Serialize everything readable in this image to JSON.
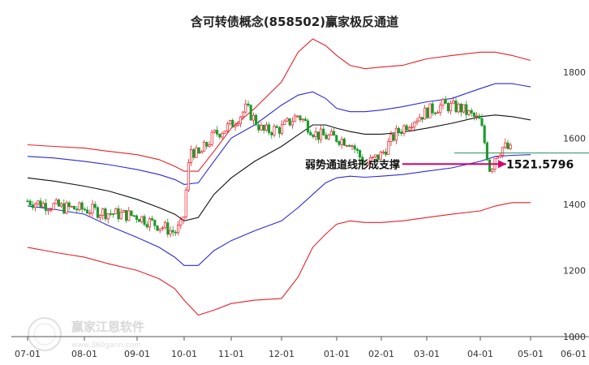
{
  "chart_data": {
    "type": "candlestick",
    "title": "含可转债概念(858502)赢家极反通道",
    "x_ticks": [
      "07-01",
      "08-01",
      "09-01",
      "10-01",
      "11-01",
      "12-01",
      "01-01",
      "02-01",
      "03-01",
      "04-01",
      "05-01",
      "06-01"
    ],
    "y_ticks": [
      1000,
      1200,
      1400,
      1600,
      1800
    ],
    "ylim": [
      1000,
      1900
    ],
    "grid": false,
    "annotation": {
      "label": "弱势通道线形成支撑",
      "value": "1521.5796",
      "value_num": 1521.58,
      "x": "04-14"
    },
    "channel_x": [
      "07-01",
      "07-15",
      "08-01",
      "08-15",
      "09-01",
      "09-15",
      "09-25",
      "10-01",
      "10-10",
      "10-20",
      "11-01",
      "11-15",
      "12-01",
      "12-10",
      "12-18",
      "12-25",
      "01-01",
      "01-10",
      "01-20",
      "02-01",
      "02-15",
      "03-01",
      "03-15",
      "04-01",
      "04-10",
      "04-20",
      "05-01"
    ],
    "series": [
      {
        "color": "#e8202a",
        "values": [
          1580,
          1575,
          1570,
          1560,
          1550,
          1535,
          1515,
          1500,
          1500,
          1560,
          1630,
          1690,
          1770,
          1860,
          1900,
          1880,
          1850,
          1820,
          1810,
          1815,
          1820,
          1840,
          1850,
          1860,
          1860,
          1850,
          1835
        ]
      },
      {
        "color": "#2b2bd8",
        "values": [
          1545,
          1540,
          1530,
          1520,
          1505,
          1490,
          1475,
          1460,
          1465,
          1530,
          1600,
          1640,
          1700,
          1730,
          1740,
          1720,
          1690,
          1680,
          1680,
          1685,
          1695,
          1710,
          1720,
          1750,
          1765,
          1765,
          1755
        ]
      },
      {
        "color": "#111111",
        "values": [
          1480,
          1470,
          1455,
          1440,
          1415,
          1390,
          1370,
          1350,
          1360,
          1430,
          1480,
          1530,
          1575,
          1610,
          1640,
          1640,
          1630,
          1620,
          1612,
          1612,
          1618,
          1630,
          1645,
          1665,
          1670,
          1665,
          1655
        ]
      },
      {
        "color": "#2b2bd8",
        "values": [
          1395,
          1385,
          1370,
          1335,
          1300,
          1270,
          1240,
          1215,
          1215,
          1260,
          1290,
          1320,
          1350,
          1390,
          1430,
          1465,
          1480,
          1485,
          1482,
          1485,
          1490,
          1500,
          1510,
          1530,
          1545,
          1548,
          1550
        ]
      },
      {
        "color": "#e8202a",
        "values": [
          1270,
          1255,
          1240,
          1220,
          1200,
          1175,
          1145,
          1110,
          1065,
          1080,
          1100,
          1110,
          1115,
          1180,
          1270,
          1310,
          1340,
          1350,
          1345,
          1345,
          1350,
          1360,
          1370,
          1380,
          1395,
          1405,
          1405
        ]
      }
    ],
    "price": {
      "x": [
        "07-01",
        "07-10",
        "07-20",
        "08-01",
        "08-10",
        "08-20",
        "09-01",
        "09-10",
        "09-18",
        "09-25",
        "09-30",
        "10-01",
        "10-05",
        "10-10",
        "10-20",
        "11-01",
        "11-10",
        "11-20",
        "12-01",
        "12-10",
        "12-20",
        "01-01",
        "01-10",
        "01-20",
        "02-01",
        "02-10",
        "02-20",
        "03-01",
        "03-10",
        "03-20",
        "04-01",
        "04-07",
        "04-10",
        "04-15",
        "04-20"
      ],
      "close": [
        1410,
        1400,
        1390,
        1385,
        1378,
        1370,
        1365,
        1345,
        1330,
        1315,
        1340,
        1390,
        1570,
        1545,
        1610,
        1640,
        1690,
        1620,
        1630,
        1670,
        1610,
        1600,
        1590,
        1520,
        1550,
        1610,
        1650,
        1680,
        1700,
        1690,
        1650,
        1500,
        1550,
        1575,
        1560
      ]
    }
  }
}
